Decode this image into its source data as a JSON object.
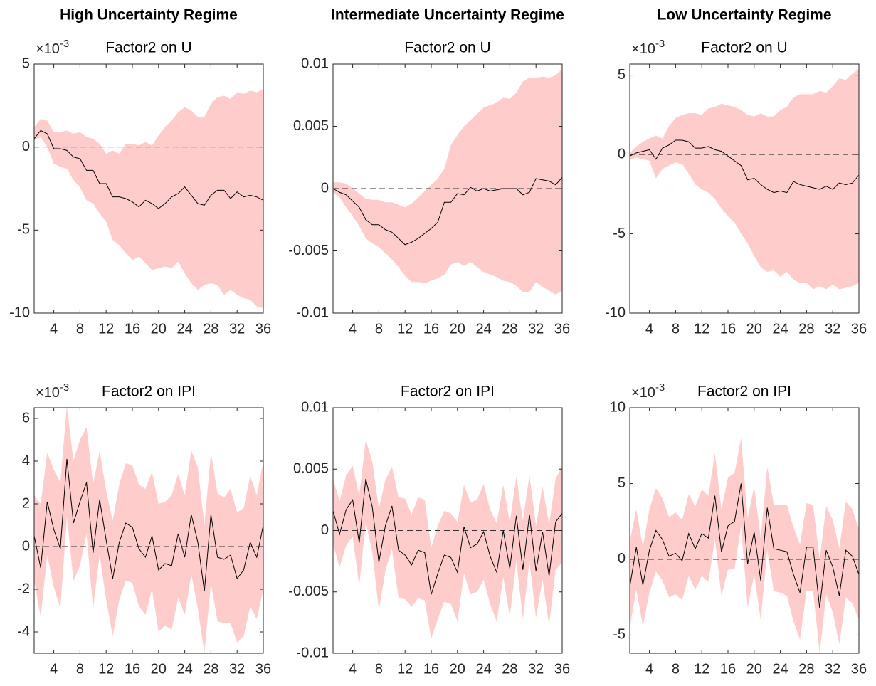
{
  "chart_data": [
    {
      "type": "band_line",
      "column_title": "High Uncertainty Regime",
      "title": "Factor2 on U",
      "y_multiplier": "×10",
      "y_exponent": "-3",
      "x": [
        1,
        2,
        3,
        4,
        5,
        6,
        7,
        8,
        9,
        10,
        11,
        12,
        13,
        14,
        15,
        16,
        17,
        18,
        19,
        20,
        21,
        22,
        23,
        24,
        25,
        26,
        27,
        28,
        29,
        30,
        31,
        32,
        33,
        34,
        35,
        36
      ],
      "values": [
        0.5,
        1.0,
        0.8,
        -0.1,
        -0.1,
        -0.2,
        -0.6,
        -0.7,
        -1.4,
        -1.4,
        -2.2,
        -2.2,
        -3.0,
        -3.0,
        -3.1,
        -3.3,
        -3.6,
        -3.2,
        -3.4,
        -3.7,
        -3.4,
        -3.0,
        -2.8,
        -2.4,
        -2.9,
        -3.4,
        -3.5,
        -2.9,
        -2.6,
        -2.6,
        -3.1,
        -2.7,
        -3.0,
        -2.9,
        -3.0,
        -3.2
      ],
      "upper": [
        1.2,
        1.7,
        1.6,
        0.9,
        0.9,
        1.0,
        0.8,
        0.9,
        0.6,
        0.5,
        0.2,
        -0.4,
        -0.2,
        -0.4,
        0.2,
        0.2,
        0.1,
        0.3,
        0.1,
        0.7,
        1.2,
        1.6,
        2.1,
        2.4,
        2.2,
        1.8,
        1.8,
        2.6,
        3.0,
        3.1,
        2.9,
        3.3,
        3.2,
        3.4,
        3.3,
        3.5
      ],
      "lower": [
        0.4,
        0.6,
        0,
        -1.0,
        -1.2,
        -1.3,
        -2.0,
        -2.4,
        -3.2,
        -3.4,
        -4.0,
        -4.5,
        -5.6,
        -5.9,
        -6.4,
        -6.8,
        -6.6,
        -7.0,
        -7.4,
        -7.3,
        -7.2,
        -7.3,
        -6.9,
        -7.6,
        -8.2,
        -8.6,
        -8.3,
        -8.2,
        -8.3,
        -8.9,
        -8.6,
        -8.9,
        -9.1,
        -9.2,
        -9.6,
        -9.7
      ],
      "color": "#000000",
      "band_color": "#ffcccc",
      "zero_line": true,
      "xlim": [
        1,
        36
      ],
      "xticks": [
        4,
        8,
        12,
        16,
        20,
        24,
        28,
        32,
        36
      ],
      "ylim": [
        -10,
        5
      ],
      "yticks": [
        -10,
        -5,
        0,
        5
      ]
    },
    {
      "type": "band_line",
      "column_title": "Intermediate Uncertainty Regime",
      "title": "Factor2 on U",
      "x": [
        1,
        2,
        3,
        4,
        5,
        6,
        7,
        8,
        9,
        10,
        11,
        12,
        13,
        14,
        15,
        16,
        17,
        18,
        19,
        20,
        21,
        22,
        23,
        24,
        25,
        26,
        27,
        28,
        29,
        30,
        31,
        32,
        33,
        34,
        35,
        36
      ],
      "values": [
        0,
        -0.0003,
        -0.0005,
        -0.001,
        -0.0015,
        -0.0025,
        -0.0029,
        -0.0029,
        -0.0033,
        -0.0035,
        -0.004,
        -0.0045,
        -0.0043,
        -0.004,
        -0.0036,
        -0.0032,
        -0.0027,
        -0.0011,
        -0.0011,
        -0.0004,
        -0.0005,
        0.0001,
        -0.0002,
        0,
        -0.0002,
        -0.0001,
        0,
        0,
        0,
        -0.0005,
        -0.0003,
        0.0008,
        0.0007,
        0.0006,
        0.0003,
        0.0009
      ],
      "upper": [
        0.0005,
        0.0005,
        0.0004,
        0,
        -0.0004,
        -0.0008,
        -0.0009,
        -0.0009,
        -0.0011,
        -0.0011,
        -0.0013,
        -0.0015,
        -0.0012,
        -0.0007,
        -0.0002,
        0.0003,
        0.0008,
        0.0016,
        0.0035,
        0.0043,
        0.005,
        0.0055,
        0.006,
        0.0065,
        0.0067,
        0.0069,
        0.0073,
        0.0072,
        0.0077,
        0.0086,
        0.0089,
        0.0089,
        0.009,
        0.0089,
        0.0091,
        0.0096
      ],
      "lower": [
        -0.0003,
        -0.0007,
        -0.0015,
        -0.0022,
        -0.003,
        -0.004,
        -0.0044,
        -0.0047,
        -0.0052,
        -0.0057,
        -0.0063,
        -0.007,
        -0.0075,
        -0.0075,
        -0.0076,
        -0.0074,
        -0.0072,
        -0.0069,
        -0.0061,
        -0.0059,
        -0.0062,
        -0.0059,
        -0.0063,
        -0.0067,
        -0.0069,
        -0.0071,
        -0.0074,
        -0.0075,
        -0.0078,
        -0.0083,
        -0.0083,
        -0.0075,
        -0.0079,
        -0.0082,
        -0.0085,
        -0.0082
      ],
      "color": "#000000",
      "band_color": "#ffcccc",
      "zero_line": true,
      "xlim": [
        1,
        36
      ],
      "xticks": [
        4,
        8,
        12,
        16,
        20,
        24,
        28,
        32,
        36
      ],
      "ylim": [
        -0.01,
        0.01
      ],
      "yticks": [
        -0.01,
        -0.005,
        0,
        0.005,
        0.01
      ]
    },
    {
      "type": "band_line",
      "column_title": "Low Uncertainty Regime",
      "title": "Factor2 on U",
      "y_multiplier": "×10",
      "y_exponent": "-3",
      "x": [
        1,
        2,
        3,
        4,
        5,
        6,
        7,
        8,
        9,
        10,
        11,
        12,
        13,
        14,
        15,
        16,
        17,
        18,
        19,
        20,
        21,
        22,
        23,
        24,
        25,
        26,
        27,
        28,
        29,
        30,
        31,
        32,
        33,
        34,
        35,
        36
      ],
      "values": [
        -0.1,
        0.1,
        0.2,
        0.3,
        -0.3,
        0.4,
        0.6,
        0.9,
        0.9,
        0.8,
        0.4,
        0.4,
        0.5,
        0.3,
        0.2,
        -0.1,
        -0.4,
        -0.7,
        -1.6,
        -1.5,
        -1.9,
        -2.2,
        -2.4,
        -2.3,
        -2.4,
        -1.7,
        -1.9,
        -2.0,
        -2.1,
        -2.2,
        -2.0,
        -2.2,
        -1.8,
        -1.9,
        -1.8,
        -1.3
      ],
      "upper": [
        0.1,
        0.5,
        0.8,
        1.0,
        1.2,
        1.0,
        1.8,
        2.3,
        2.5,
        2.6,
        2.6,
        2.5,
        2.9,
        3.0,
        3.2,
        3.1,
        3.0,
        2.8,
        2.5,
        2.4,
        2.6,
        2.4,
        2.4,
        2.8,
        3.0,
        3.6,
        3.8,
        3.8,
        3.8,
        4.0,
        3.9,
        4.3,
        4.8,
        4.7,
        5.1,
        5.4
      ],
      "lower": [
        -0.3,
        -0.2,
        -0.3,
        -0.4,
        -1.5,
        -0.9,
        -0.7,
        -0.5,
        -0.6,
        -1.2,
        -1.9,
        -2.2,
        -2.4,
        -2.8,
        -3.4,
        -3.9,
        -4.3,
        -5.0,
        -5.6,
        -6.4,
        -7.1,
        -7.4,
        -7.3,
        -7.7,
        -7.4,
        -7.9,
        -8.1,
        -8.1,
        -8.5,
        -8.3,
        -8.5,
        -8.2,
        -8.5,
        -8.4,
        -8.3,
        -8.1
      ],
      "color": "#000000",
      "band_color": "#ffcccc",
      "zero_line": true,
      "xlim": [
        1,
        36
      ],
      "xticks": [
        4,
        8,
        12,
        16,
        20,
        24,
        28,
        32,
        36
      ],
      "ylim": [
        -10,
        5.7
      ],
      "yticks": [
        -10,
        -5,
        0,
        5
      ]
    },
    {
      "type": "band_line",
      "title": "Factor2 on IPI",
      "y_multiplier": "×10",
      "y_exponent": "-3",
      "x": [
        1,
        2,
        3,
        4,
        5,
        6,
        7,
        8,
        9,
        10,
        11,
        12,
        13,
        14,
        15,
        16,
        17,
        18,
        19,
        20,
        21,
        22,
        23,
        24,
        25,
        26,
        27,
        28,
        29,
        30,
        31,
        32,
        33,
        34,
        35,
        36
      ],
      "values": [
        0.5,
        -1.0,
        2.1,
        0.8,
        -0.1,
        4.1,
        1.1,
        2.1,
        3.0,
        -0.3,
        2.2,
        0.3,
        -1.5,
        0.2,
        1.1,
        0.9,
        -0.1,
        -0.5,
        0.5,
        -1.1,
        -0.8,
        -0.9,
        0.6,
        -0.5,
        1.5,
        0.2,
        -2.1,
        1.5,
        -0.5,
        -0.6,
        -0.4,
        -1.5,
        -1.1,
        0.2,
        -0.5,
        1.0
      ],
      "upper": [
        2.4,
        2.0,
        4.4,
        3.6,
        3.0,
        6.6,
        4.0,
        5.0,
        5.6,
        2.9,
        4.5,
        2.6,
        1.2,
        2.9,
        3.9,
        3.8,
        2.9,
        2.7,
        3.5,
        2.0,
        2.1,
        2.4,
        3.4,
        2.4,
        4.5,
        3.7,
        1.0,
        4.4,
        2.5,
        2.3,
        2.7,
        1.6,
        1.8,
        3.3,
        2.4,
        4.0
      ],
      "lower": [
        -1.6,
        -3.3,
        -0.4,
        -1.9,
        -2.9,
        1.4,
        -1.6,
        -0.9,
        0.6,
        -2.9,
        -0.4,
        -2.5,
        -4.2,
        -2.5,
        -1.6,
        -1.7,
        -2.8,
        -3.2,
        -2.0,
        -4.0,
        -3.7,
        -3.9,
        -2.4,
        -3.2,
        -1.3,
        -2.9,
        -5.0,
        -1.7,
        -3.5,
        -3.6,
        -3.6,
        -4.5,
        -4.2,
        -2.8,
        -3.4,
        -2.0
      ],
      "color": "#000000",
      "band_color": "#ffcccc",
      "zero_line": true,
      "xlim": [
        1,
        36
      ],
      "xticks": [
        4,
        8,
        12,
        16,
        20,
        24,
        28,
        32,
        36
      ],
      "ylim": [
        -5,
        6.5
      ],
      "yticks": [
        -4,
        -2,
        0,
        2,
        4,
        6
      ]
    },
    {
      "type": "band_line",
      "title": "Factor2 on IPI",
      "x": [
        1,
        2,
        3,
        4,
        5,
        6,
        7,
        8,
        9,
        10,
        11,
        12,
        13,
        14,
        15,
        16,
        17,
        18,
        19,
        20,
        21,
        22,
        23,
        24,
        25,
        26,
        27,
        28,
        29,
        30,
        31,
        32,
        33,
        34,
        35,
        36
      ],
      "values": [
        0.0016,
        -0.0003,
        0.0017,
        0.0025,
        -0.001,
        0.0042,
        0.0019,
        -0.0026,
        0.0004,
        0.002,
        -0.0016,
        -0.002,
        -0.0028,
        -0.0016,
        -0.0018,
        -0.0052,
        -0.0035,
        -0.002,
        -0.0022,
        -0.0034,
        0.0003,
        -0.0014,
        -0.0011,
        -0.0001,
        -0.0021,
        -0.0034,
        0,
        -0.0031,
        0.0012,
        -0.0032,
        0.0013,
        -0.0033,
        -0.0001,
        -0.0037,
        0.0007,
        0.0014
      ],
      "upper": [
        0.0042,
        0.0024,
        0.0045,
        0.0053,
        0.0028,
        0.0074,
        0.0056,
        0.0018,
        0.0041,
        0.0052,
        0.0027,
        0.0026,
        0.0013,
        0.0027,
        0.0025,
        -0.0014,
        0.0004,
        0.0016,
        0.0014,
        0.0007,
        0.0037,
        0.0023,
        0.0025,
        0.0038,
        0.0017,
        0.0006,
        0.0037,
        0.0007,
        0.0044,
        0.0008,
        0.0045,
        0.0004,
        0.0036,
        0.0005,
        0.0042,
        0.0052
      ],
      "lower": [
        -0.0011,
        -0.003,
        -0.0012,
        -0.0005,
        -0.0045,
        0.0007,
        -0.0018,
        -0.0065,
        -0.0033,
        -0.0015,
        -0.0055,
        -0.0056,
        -0.0062,
        -0.0055,
        -0.0057,
        -0.0088,
        -0.0072,
        -0.0058,
        -0.006,
        -0.0074,
        -0.0035,
        -0.0052,
        -0.005,
        -0.004,
        -0.006,
        -0.0074,
        -0.0038,
        -0.007,
        -0.0025,
        -0.0072,
        -0.0025,
        -0.0071,
        -0.004,
        -0.0077,
        -0.0032,
        -0.0026
      ],
      "color": "#000000",
      "band_color": "#ffcccc",
      "zero_line": true,
      "xlim": [
        1,
        36
      ],
      "xticks": [
        4,
        8,
        12,
        16,
        20,
        24,
        28,
        32,
        36
      ],
      "ylim": [
        -0.01,
        0.01
      ],
      "yticks": [
        -0.01,
        -0.005,
        0,
        0.005,
        0.01
      ]
    },
    {
      "type": "band_line",
      "title": "Factor2 on IPI",
      "y_multiplier": "×10",
      "y_exponent": "-3",
      "x": [
        1,
        2,
        3,
        4,
        5,
        6,
        7,
        8,
        9,
        10,
        11,
        12,
        13,
        14,
        15,
        16,
        17,
        18,
        19,
        20,
        21,
        22,
        23,
        24,
        25,
        26,
        27,
        28,
        29,
        30,
        31,
        32,
        33,
        34,
        35,
        36
      ],
      "values": [
        -1.8,
        0.8,
        -1.7,
        0.6,
        1.9,
        1.3,
        0.2,
        0.4,
        -0.1,
        1.7,
        0.7,
        1.7,
        1.4,
        4.2,
        0.5,
        2.2,
        2.5,
        5.0,
        -0.3,
        1.8,
        -1.4,
        3.4,
        0.7,
        0.6,
        0.5,
        -1.0,
        -2.2,
        0.8,
        0.8,
        -3.2,
        0.6,
        -0.5,
        -2.4,
        0.6,
        0.2,
        -1.0
      ],
      "upper": [
        1.2,
        3.3,
        0.8,
        3.3,
        4.7,
        4.0,
        2.8,
        3.1,
        2.6,
        4.3,
        3.5,
        4.6,
        4.2,
        7.0,
        3.3,
        5.4,
        5.7,
        8.0,
        2.7,
        4.8,
        1.4,
        6.1,
        3.6,
        3.6,
        3.6,
        2.1,
        1.0,
        3.7,
        3.6,
        0,
        3.5,
        2.6,
        0.7,
        3.8,
        3.3,
        2.0
      ],
      "lower": [
        -4.5,
        -2.0,
        -4.4,
        -2.2,
        -0.8,
        -1.4,
        -2.5,
        -2.3,
        -2.7,
        -1.1,
        -2.0,
        -1.1,
        -1.5,
        1.3,
        -2.4,
        -0.7,
        -0.6,
        2.2,
        -3.2,
        -1.0,
        -4.0,
        0.6,
        -2.1,
        -2.2,
        -2.4,
        -4.1,
        -5.3,
        -2.1,
        -2.1,
        -6.2,
        -2.3,
        -3.5,
        -5.6,
        -2.5,
        -2.9,
        -4.0
      ],
      "color": "#000000",
      "band_color": "#ffcccc",
      "zero_line": true,
      "xlim": [
        1,
        36
      ],
      "xticks": [
        4,
        8,
        12,
        16,
        20,
        24,
        28,
        32,
        36
      ],
      "ylim": [
        -6.2,
        10
      ],
      "yticks": [
        -5,
        0,
        5,
        10
      ]
    }
  ]
}
